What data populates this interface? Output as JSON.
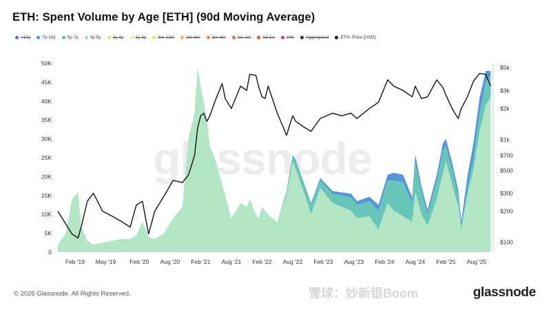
{
  "title": "ETH: Spent Volume by Age [ETH] (90d Moving Average)",
  "legend": [
    {
      "label": ">10y",
      "color": "#5b6fd4",
      "active": false
    },
    {
      "label": "7y-10y",
      "color": "#4a8fd9",
      "active": true
    },
    {
      "label": "5y-7y",
      "color": "#5cc0b8",
      "active": true
    },
    {
      "label": "3y-5y",
      "color": "#9fe0b0",
      "active": true
    },
    {
      "label": "2y-3y",
      "color": "#d7e88a",
      "active": false
    },
    {
      "label": "1y-2y",
      "color": "#f2e79a",
      "active": false
    },
    {
      "label": "6m-12m",
      "color": "#f5d36b",
      "active": false
    },
    {
      "label": "3m-6m",
      "color": "#f1b466",
      "active": false
    },
    {
      "label": "1m-3m",
      "color": "#ee8a54",
      "active": false
    },
    {
      "label": "1w-1m",
      "color": "#e66a4a",
      "active": false
    },
    {
      "label": "1d-1w",
      "color": "#dd4a4a",
      "active": false
    },
    {
      "label": "24h",
      "color": "#c33a8e",
      "active": false
    },
    {
      "label": "Aggregated",
      "color": "#333333",
      "active": false
    },
    {
      "label": "ETH: Price [USD]",
      "color": "#111111",
      "active": true
    }
  ],
  "watermark": "glassnode",
  "footer": "© 2025 Glassnode. All Rights Reserved.",
  "logo": "glassnode",
  "xueqiu_mark": "雪球：妙新银Boom",
  "chart_data": {
    "type": "area",
    "xlabels": [
      "Feb '19",
      "May '19",
      "Feb '20",
      "Aug '20",
      "Feb '21",
      "Aug '21",
      "Feb '22",
      "Aug '22",
      "Feb '23",
      "Aug '23",
      "Feb '24",
      "Aug '24",
      "Feb '25",
      "Aug '25"
    ],
    "y_left_ticks": [
      "0",
      "5K",
      "10K",
      "15K",
      "20K",
      "25K",
      "30K",
      "35K",
      "40K",
      "45K",
      "50K"
    ],
    "y_right_ticks": [
      "$100",
      "$200",
      "$300",
      "$500",
      "$700",
      "$1k",
      "$2k",
      "$3k",
      "$5k"
    ],
    "ylim_left": [
      0,
      50000
    ],
    "ylim_right": [
      80,
      5500
    ],
    "right_log_scale": true,
    "x": [
      2018.72,
      2018.85,
      2018.95,
      2019.05,
      2019.1,
      2019.2,
      2019.3,
      2019.45,
      2019.6,
      2019.75,
      2019.9,
      2020.0,
      2020.1,
      2020.2,
      2020.3,
      2020.45,
      2020.6,
      2020.75,
      2020.85,
      2020.95,
      2021.0,
      2021.05,
      2021.1,
      2021.15,
      2021.2,
      2021.3,
      2021.4,
      2021.45,
      2021.55,
      2021.7,
      2021.8,
      2021.85,
      2021.95,
      2022.0,
      2022.05,
      2022.1,
      2022.15,
      2022.3,
      2022.45,
      2022.55,
      2022.6,
      2022.75,
      2022.85,
      2023.0,
      2023.2,
      2023.35,
      2023.5,
      2023.6,
      2023.8,
      2023.95,
      2024.1,
      2024.2,
      2024.35,
      2024.5,
      2024.55,
      2024.65,
      2024.75,
      2024.9,
      2025.0,
      2025.05,
      2025.15,
      2025.25,
      2025.3,
      2025.4,
      2025.5,
      2025.6,
      2025.7,
      2025.78
    ],
    "series": [
      {
        "name": "3y-5y",
        "color": "#aae3bf",
        "values": [
          2000,
          5000,
          14000,
          16000,
          7000,
          3000,
          2000,
          2500,
          3000,
          3500,
          3500,
          4500,
          8000,
          4000,
          3500,
          5000,
          9000,
          12000,
          30000,
          37000,
          49000,
          44000,
          40000,
          35000,
          28000,
          24000,
          18000,
          15000,
          9000,
          13000,
          12000,
          14000,
          10000,
          9000,
          12000,
          11000,
          10000,
          8000,
          15000,
          24000,
          22000,
          15000,
          10000,
          17000,
          13000,
          12000,
          11000,
          9000,
          9500,
          6000,
          13000,
          11000,
          9500,
          8000,
          16000,
          10000,
          7000,
          14000,
          21000,
          24000,
          18000,
          12000,
          6000,
          15000,
          22000,
          32000,
          39000,
          41000
        ]
      },
      {
        "name": "5y-7y",
        "color": "#5fc2b6",
        "values": [
          0,
          0,
          0,
          0,
          0,
          0,
          0,
          0,
          0,
          0,
          0,
          0,
          0,
          0,
          0,
          0,
          0,
          0,
          0,
          0,
          0,
          0,
          0,
          0,
          0,
          0,
          0,
          0,
          0,
          0,
          0,
          0,
          0,
          0,
          0,
          0,
          0,
          0,
          1000,
          1500,
          2000,
          2000,
          2500,
          2000,
          2500,
          3000,
          3500,
          3500,
          4000,
          5000,
          6000,
          8000,
          9000,
          5000,
          8000,
          6000,
          3000,
          5000,
          6000,
          4000,
          4000,
          3000,
          1000,
          2000,
          3000,
          5000,
          6000,
          6000
        ]
      },
      {
        "name": "7y-10y",
        "color": "#4b8fd6",
        "values": [
          0,
          0,
          0,
          0,
          0,
          0,
          0,
          0,
          0,
          0,
          0,
          0,
          0,
          0,
          0,
          0,
          0,
          0,
          0,
          0,
          0,
          0,
          0,
          0,
          0,
          0,
          0,
          0,
          0,
          0,
          0,
          0,
          0,
          0,
          0,
          0,
          0,
          0,
          200,
          300,
          400,
          500,
          500,
          600,
          700,
          800,
          1000,
          1000,
          1200,
          1500,
          1500,
          2000,
          2000,
          1500,
          1800,
          1500,
          1200,
          1500,
          1800,
          2000,
          1800,
          1500,
          1200,
          3000,
          4000,
          4000,
          3000,
          1000
        ]
      },
      {
        "name": "ETH: Price [USD]",
        "color": "#111111",
        "values": [
          200,
          150,
          120,
          110,
          140,
          250,
          300,
          200,
          180,
          160,
          140,
          230,
          250,
          120,
          200,
          280,
          400,
          380,
          450,
          700,
          1300,
          1700,
          1800,
          1500,
          1700,
          2500,
          3500,
          2500,
          2000,
          3300,
          3000,
          4300,
          4200,
          3200,
          2600,
          2500,
          3300,
          1800,
          1100,
          1700,
          1500,
          1300,
          1200,
          1600,
          1800,
          1700,
          1800,
          1600,
          2000,
          2300,
          3800,
          3300,
          3000,
          2600,
          3300,
          2500,
          2600,
          3800,
          3200,
          2700,
          2000,
          1600,
          2000,
          2600,
          3700,
          4400,
          4300,
          3300
        ]
      }
    ]
  }
}
